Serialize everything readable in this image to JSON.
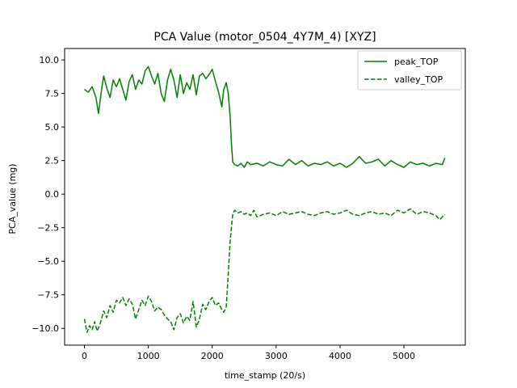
{
  "chart_data": {
    "type": "line",
    "title": "PCA Value (motor_0504_4Y7M_4) [XYZ]",
    "xlabel": "time_stamp (20/s)",
    "ylabel": "PCA_value (mg)",
    "xlim": [
      -310,
      5960
    ],
    "ylim": [
      -11.25,
      10.85
    ],
    "xticks": [
      0,
      1000,
      2000,
      3000,
      4000,
      5000
    ],
    "yticks": [
      -10.0,
      -7.5,
      -5.0,
      -2.5,
      0.0,
      2.5,
      5.0,
      7.5,
      10.0
    ],
    "grid": false,
    "legend_position": "upper right",
    "colors": {
      "series": "#008000"
    },
    "series": [
      {
        "name": "peak_TOP",
        "style": "solid",
        "x": [
          0,
          60,
          120,
          180,
          220,
          260,
          300,
          350,
          400,
          450,
          500,
          550,
          600,
          650,
          700,
          750,
          800,
          850,
          900,
          950,
          1000,
          1050,
          1100,
          1150,
          1200,
          1250,
          1300,
          1350,
          1400,
          1450,
          1500,
          1550,
          1600,
          1650,
          1700,
          1750,
          1800,
          1850,
          1900,
          1950,
          2000,
          2050,
          2100,
          2150,
          2180,
          2220,
          2250,
          2280,
          2300,
          2320,
          2350,
          2400,
          2450,
          2500,
          2550,
          2600,
          2700,
          2800,
          2900,
          3000,
          3100,
          3200,
          3300,
          3400,
          3500,
          3600,
          3700,
          3800,
          3900,
          4000,
          4100,
          4200,
          4300,
          4400,
          4500,
          4600,
          4700,
          4800,
          4900,
          5000,
          5100,
          5200,
          5300,
          5400,
          5500,
          5600,
          5640
        ],
        "y": [
          7.8,
          7.6,
          8.0,
          7.2,
          6.0,
          7.5,
          8.8,
          7.9,
          7.2,
          8.5,
          8.0,
          8.6,
          7.8,
          7.0,
          8.4,
          8.9,
          7.8,
          8.5,
          8.2,
          9.2,
          9.5,
          8.8,
          8.2,
          9.0,
          7.5,
          6.9,
          8.5,
          9.3,
          8.5,
          7.2,
          8.9,
          7.5,
          8.3,
          7.8,
          8.9,
          7.4,
          8.8,
          9.0,
          8.6,
          8.9,
          9.3,
          8.4,
          7.6,
          6.5,
          7.8,
          8.3,
          7.5,
          5.8,
          3.8,
          2.4,
          2.2,
          2.1,
          2.3,
          2.0,
          2.4,
          2.2,
          2.3,
          2.1,
          2.4,
          2.2,
          2.1,
          2.6,
          2.2,
          2.5,
          2.1,
          2.3,
          2.2,
          2.4,
          2.1,
          2.3,
          2.0,
          2.3,
          2.8,
          2.3,
          2.4,
          2.6,
          2.1,
          2.5,
          2.2,
          2.0,
          2.4,
          2.2,
          2.3,
          2.1,
          2.3,
          2.2,
          2.7
        ]
      },
      {
        "name": "valley_TOP",
        "style": "dashed",
        "x": [
          0,
          40,
          80,
          120,
          160,
          200,
          250,
          300,
          350,
          400,
          450,
          500,
          550,
          600,
          650,
          700,
          750,
          800,
          850,
          900,
          950,
          1000,
          1050,
          1100,
          1150,
          1200,
          1250,
          1300,
          1350,
          1400,
          1450,
          1500,
          1550,
          1600,
          1650,
          1700,
          1750,
          1800,
          1850,
          1900,
          1950,
          2000,
          2050,
          2100,
          2150,
          2180,
          2220,
          2250,
          2280,
          2320,
          2350,
          2400,
          2450,
          2500,
          2550,
          2600,
          2650,
          2700,
          2800,
          2900,
          3000,
          3100,
          3200,
          3300,
          3400,
          3500,
          3600,
          3700,
          3800,
          3900,
          4000,
          4100,
          4200,
          4300,
          4400,
          4500,
          4600,
          4700,
          4800,
          4900,
          5000,
          5100,
          5200,
          5300,
          5400,
          5500,
          5560,
          5640
        ],
        "y": [
          -9.3,
          -10.3,
          -9.8,
          -10.1,
          -9.5,
          -10.2,
          -9.6,
          -8.7,
          -9.2,
          -8.3,
          -8.8,
          -7.9,
          -8.1,
          -7.7,
          -8.3,
          -7.8,
          -8.2,
          -9.3,
          -8.6,
          -7.9,
          -8.3,
          -7.6,
          -8.0,
          -8.7,
          -8.4,
          -8.6,
          -9.0,
          -9.3,
          -9.5,
          -10.1,
          -9.2,
          -8.9,
          -9.6,
          -9.1,
          -9.4,
          -8.0,
          -9.9,
          -9.3,
          -8.2,
          -8.6,
          -8.0,
          -7.7,
          -8.3,
          -8.1,
          -8.6,
          -8.8,
          -8.4,
          -6.0,
          -3.5,
          -1.5,
          -1.2,
          -1.4,
          -1.3,
          -1.5,
          -1.4,
          -1.6,
          -1.2,
          -1.7,
          -1.5,
          -1.4,
          -1.6,
          -1.3,
          -1.5,
          -1.4,
          -1.3,
          -1.5,
          -1.6,
          -1.4,
          -1.3,
          -1.5,
          -1.4,
          -1.2,
          -1.5,
          -1.6,
          -1.4,
          -1.3,
          -1.5,
          -1.4,
          -1.6,
          -1.2,
          -1.4,
          -1.1,
          -1.5,
          -1.3,
          -1.4,
          -1.6,
          -1.9,
          -1.5
        ]
      }
    ]
  }
}
